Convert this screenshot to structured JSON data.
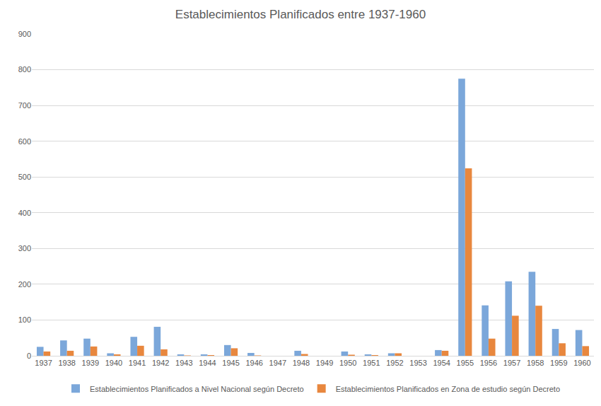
{
  "chart_data": {
    "type": "bar",
    "title": "Establecimientos Planificados entre 1937-1960",
    "categories": [
      "1937",
      "1938",
      "1939",
      "1940",
      "1941",
      "1942",
      "1943",
      "1944",
      "1945",
      "1946",
      "1947",
      "1948",
      "1949",
      "1950",
      "1951",
      "1952",
      "1953",
      "1954",
      "1955",
      "1956",
      "1957",
      "1958",
      "1959",
      "1960"
    ],
    "series": [
      {
        "name": "Establecimientos Planificados a Nivel Nacional según Decreto",
        "color": "#7ba7da",
        "values": [
          25,
          43,
          48,
          7,
          53,
          81,
          4,
          4,
          30,
          8,
          0,
          14,
          0,
          12,
          4,
          7,
          0,
          16,
          775,
          141,
          208,
          235,
          75,
          72
        ]
      },
      {
        "name": "Establecimientos Planificados en Zona de estudio según Decreto",
        "color": "#e8873e",
        "values": [
          12,
          14,
          26,
          4,
          28,
          18,
          1,
          2,
          21,
          1,
          0,
          5,
          0,
          3,
          2,
          7,
          0,
          14,
          524,
          48,
          112,
          140,
          35,
          27
        ]
      }
    ],
    "ylim": [
      0,
      900
    ],
    "yticks": [
      0,
      100,
      200,
      300,
      400,
      500,
      600,
      700,
      800,
      900
    ],
    "grid": true,
    "legend": "bottom"
  }
}
